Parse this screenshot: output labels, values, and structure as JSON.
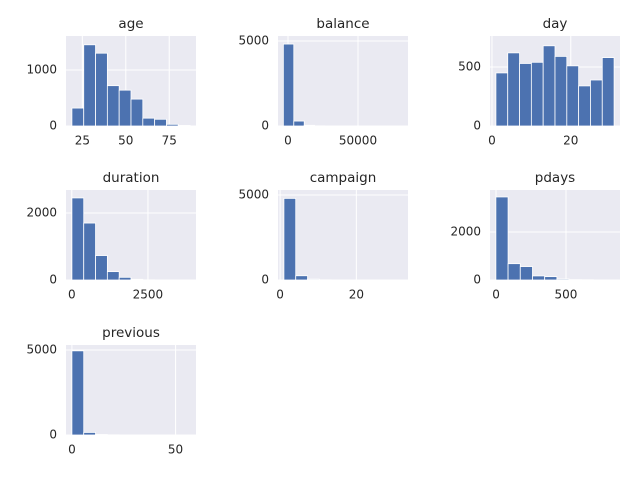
{
  "chart_data": [
    {
      "type": "histogram",
      "title": "age",
      "bins": [
        19,
        25.8,
        32.6,
        39.4,
        46.2,
        53,
        59.8,
        66.6,
        73.4,
        80.2,
        87
      ],
      "counts": [
        320,
        1450,
        1300,
        720,
        640,
        480,
        140,
        120,
        30,
        10
      ],
      "color": "#4c72b0",
      "grid": true,
      "xlim": [
        15.6,
        90.4
      ],
      "xticks": [
        25,
        50,
        75
      ],
      "ylim": [
        0,
        1607
      ],
      "yticks": [
        0,
        1000
      ]
    },
    {
      "type": "histogram",
      "title": "balance",
      "bins": [
        -3313,
        4137,
        11587,
        19037,
        26487,
        33937,
        41387,
        48837,
        56287,
        63737,
        71188
      ],
      "counts": [
        4820,
        290,
        40,
        10,
        4,
        2,
        1,
        0,
        0,
        1
      ],
      "color": "#4c72b0",
      "grid": true,
      "xlim": [
        -7143,
        85714
      ],
      "xticks": [
        0,
        50000
      ],
      "ylim": [
        0,
        5294
      ],
      "yticks": [
        0,
        5000
      ]
    },
    {
      "type": "histogram",
      "title": "day",
      "bins": [
        1,
        4,
        7,
        10,
        13,
        16,
        19,
        22,
        25,
        28,
        31
      ],
      "counts": [
        450,
        620,
        530,
        540,
        680,
        590,
        510,
        340,
        390,
        580
      ],
      "color": "#4c72b0",
      "grid": true,
      "xlim": [
        -0.5,
        32.5
      ],
      "xticks": [
        0,
        20
      ],
      "ylim": [
        0,
        763
      ],
      "yticks": [
        0,
        500
      ]
    },
    {
      "type": "histogram",
      "title": "duration",
      "bins": [
        4,
        392,
        780,
        1168,
        1556,
        1944,
        2332,
        2720,
        3108,
        3496,
        3884
      ],
      "counts": [
        2450,
        1700,
        730,
        250,
        80,
        20,
        5,
        2,
        1,
        1
      ],
      "color": "#4c72b0",
      "grid": true,
      "xlim": [
        -190,
        4078
      ],
      "xticks": [
        0,
        2500
      ],
      "ylim": [
        0,
        2687
      ],
      "yticks": [
        0,
        2000
      ]
    },
    {
      "type": "histogram",
      "title": "campaign",
      "bins": [
        1,
        4.1,
        7.2,
        10.3,
        13.4,
        16.5,
        19.6,
        22.7,
        25.8,
        28.9,
        32
      ],
      "counts": [
        4800,
        250,
        50,
        10,
        5,
        2,
        1,
        1,
        0,
        1
      ],
      "color": "#4c72b0",
      "grid": true,
      "xlim": [
        -0.55,
        33.55
      ],
      "xticks": [
        0,
        20
      ],
      "ylim": [
        0,
        5294
      ],
      "yticks": [
        0,
        5000
      ]
    },
    {
      "type": "histogram",
      "title": "pdays",
      "bins": [
        -1,
        86.2,
        173.4,
        260.6,
        347.8,
        435,
        522.2,
        609.4,
        696.6,
        783.8,
        871
      ],
      "counts": [
        3460,
        680,
        560,
        170,
        140,
        40,
        15,
        10,
        5,
        2
      ],
      "color": "#4c72b0",
      "grid": true,
      "xlim": [
        -43,
        886
      ],
      "xticks": [
        0,
        500
      ],
      "ylim": [
        0,
        3750
      ],
      "yticks": [
        0,
        2000
      ]
    },
    {
      "type": "histogram",
      "title": "previous",
      "bins": [
        0,
        5.7,
        11.4,
        17.1,
        22.8,
        28.5,
        34.2,
        39.9,
        45.6,
        51.3,
        57
      ],
      "counts": [
        4950,
        150,
        30,
        10,
        5,
        2,
        1,
        0,
        0,
        1
      ],
      "color": "#4c72b0",
      "grid": true,
      "xlim": [
        -2.85,
        59.85
      ],
      "xticks": [
        0,
        50
      ],
      "ylim": [
        0,
        5294
      ],
      "yticks": [
        0,
        5000
      ]
    }
  ]
}
